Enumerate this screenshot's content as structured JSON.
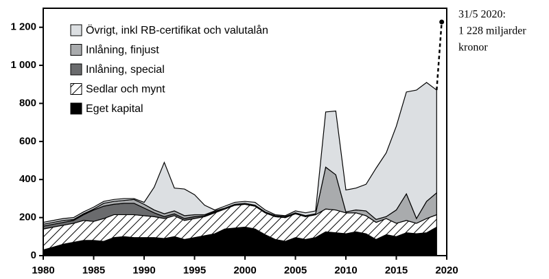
{
  "chart_data": {
    "type": "area",
    "stacked": true,
    "x": [
      1980,
      1981,
      1982,
      1983,
      1984,
      1985,
      1986,
      1987,
      1988,
      1989,
      1990,
      1991,
      1992,
      1993,
      1994,
      1995,
      1996,
      1997,
      1998,
      1999,
      2000,
      2001,
      2002,
      2003,
      2004,
      2005,
      2006,
      2007,
      2008,
      2009,
      2010,
      2011,
      2012,
      2013,
      2014,
      2015,
      2016,
      2017,
      2018,
      2019
    ],
    "series": [
      {
        "name": "Övrigt, inkl RB-certifikat och valutalån",
        "color": "#dcdfe2",
        "values": [
          10,
          10,
          10,
          10,
          10,
          10,
          10,
          10,
          10,
          5,
          10,
          120,
          270,
          120,
          140,
          105,
          50,
          5,
          10,
          10,
          10,
          15,
          10,
          5,
          5,
          10,
          15,
          15,
          290,
          335,
          115,
          115,
          140,
          270,
          335,
          440,
          535,
          675,
          625,
          540
        ]
      },
      {
        "name": "Inlåning, finjust",
        "color": "#a9abad",
        "values": [
          10,
          10,
          10,
          5,
          5,
          5,
          15,
          15,
          15,
          20,
          20,
          15,
          15,
          15,
          15,
          10,
          5,
          5,
          5,
          5,
          5,
          5,
          5,
          5,
          5,
          5,
          5,
          5,
          220,
          185,
          5,
          15,
          25,
          15,
          10,
          70,
          140,
          25,
          90,
          115
        ]
      },
      {
        "name": "Inlåning, special",
        "color": "#6a6b6d",
        "values": [
          15,
          15,
          15,
          15,
          30,
          60,
          65,
          55,
          60,
          60,
          40,
          20,
          10,
          10,
          10,
          10,
          5,
          5,
          0,
          0,
          0,
          0,
          0,
          0,
          0,
          0,
          0,
          0,
          0,
          0,
          0,
          0,
          0,
          0,
          0,
          0,
          0,
          0,
          0,
          0
        ]
      },
      {
        "name": "Sedlar och mynt",
        "color": "#ffffff",
        "hatch": true,
        "values": [
          110,
          105,
          100,
          100,
          105,
          100,
          120,
          120,
          115,
          120,
          115,
          110,
          105,
          110,
          100,
          100,
          100,
          110,
          105,
          120,
          120,
          120,
          115,
          120,
          125,
          125,
          120,
          120,
          120,
          120,
          110,
          100,
          95,
          90,
          85,
          70,
          65,
          55,
          75,
          65
        ]
      },
      {
        "name": "Eget kapital",
        "color": "#000000",
        "values": [
          30,
          45,
          60,
          70,
          80,
          80,
          75,
          95,
          100,
          95,
          95,
          95,
          90,
          100,
          85,
          95,
          105,
          115,
          140,
          145,
          150,
          140,
          110,
          85,
          75,
          95,
          85,
          95,
          125,
          120,
          115,
          125,
          115,
          85,
          110,
          100,
          120,
          115,
          120,
          150
        ]
      }
    ],
    "xlim": [
      1980,
      2020
    ],
    "xticks": [
      1980,
      1985,
      1990,
      1995,
      2000,
      2005,
      2010,
      2015,
      2020
    ],
    "ylim": [
      0,
      1300
    ],
    "yticks": [
      0,
      200,
      400,
      600,
      800,
      {
        "value": 1000,
        "label": "1 000"
      },
      {
        "value": 1200,
        "label": "1 200"
      }
    ],
    "annotation": {
      "x": 2019.5,
      "y": 1228,
      "lines": [
        "31/5 2020:",
        "1 228 miljarder",
        "kronor"
      ]
    }
  }
}
